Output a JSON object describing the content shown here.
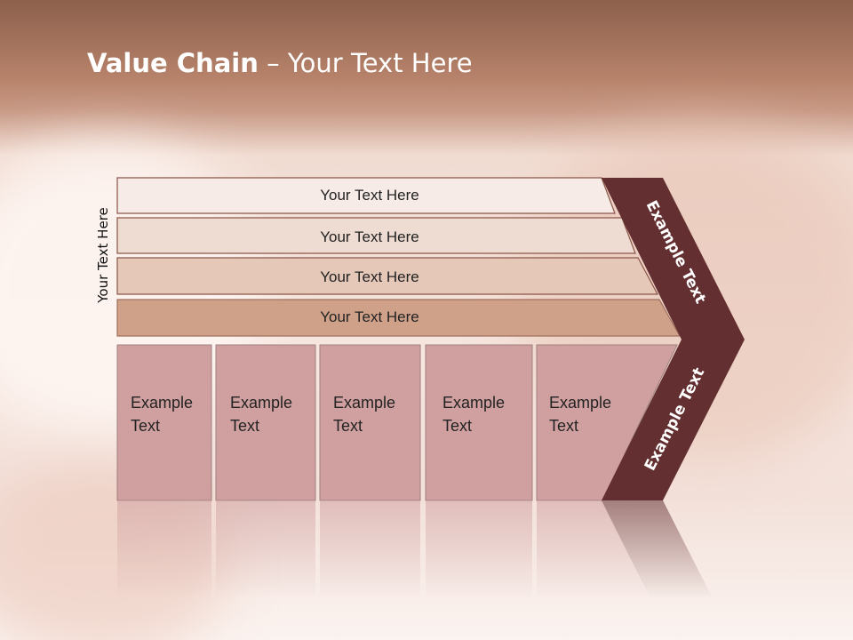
{
  "title": {
    "bold": "Value Chain",
    "rest": " – Your Text Here"
  },
  "side_label": "Your Text Here",
  "rows": [
    "Your Text Here",
    "Your Text Here",
    "Your Text Here",
    "Your Text Here"
  ],
  "boxes": [
    [
      "Example",
      "Text"
    ],
    [
      "Example",
      "Text"
    ],
    [
      "Example",
      "Text"
    ],
    [
      "Example",
      "Text"
    ],
    [
      "Example",
      "Text"
    ]
  ],
  "chevron": {
    "upper": "Example Text",
    "lower": "Example Text"
  },
  "colors": {
    "chevron": "#632f31",
    "boxes": "#d0a0a0",
    "row1": "#f6ebe7",
    "row2": "#eedbd2",
    "row3": "#e6c8b9",
    "row4": "#d0a189"
  }
}
